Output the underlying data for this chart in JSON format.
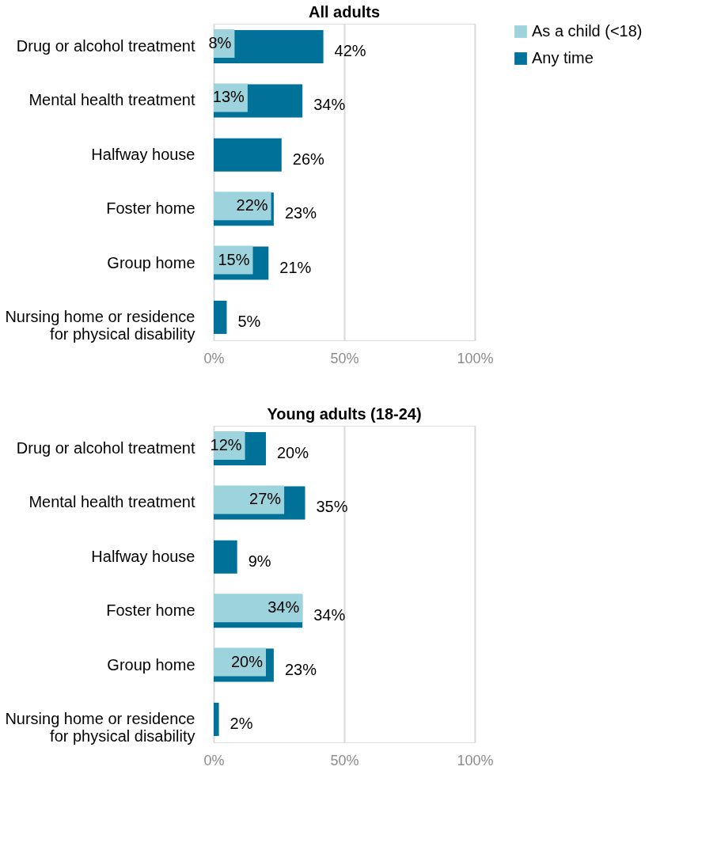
{
  "chart_data": [
    {
      "type": "bar",
      "orientation": "horizontal",
      "title": "All adults",
      "categories": [
        "Drug or alcohol treatment",
        "Mental health treatment",
        "Halfway house",
        "Foster home",
        "Group home",
        "Nursing home or residence for physical disability"
      ],
      "series": [
        {
          "name": "As a child (<18)",
          "color": "#9dd3dc",
          "values": [
            8,
            13,
            null,
            22,
            15,
            null
          ],
          "value_labels": [
            "8%",
            "13%",
            null,
            "22%",
            "15%",
            null
          ]
        },
        {
          "name": "Any time",
          "color": "#00729a",
          "values": [
            42,
            34,
            26,
            23,
            21,
            5
          ],
          "value_labels": [
            "42%",
            "34%",
            "26%",
            "23%",
            "21%",
            "5%"
          ]
        }
      ],
      "xlim": [
        0,
        100
      ],
      "xticks": [
        {
          "value": 0,
          "label": "0%"
        },
        {
          "value": 50,
          "label": "50%"
        },
        {
          "value": 100,
          "label": "100%"
        }
      ],
      "grid": "x",
      "legend": "right"
    },
    {
      "type": "bar",
      "orientation": "horizontal",
      "title": "Young adults (18-24)",
      "categories": [
        "Drug or alcohol treatment",
        "Mental health treatment",
        "Halfway house",
        "Foster home",
        "Group home",
        "Nursing home or residence for physical disability"
      ],
      "series": [
        {
          "name": "As a child (<18)",
          "color": "#9dd3dc",
          "values": [
            12,
            27,
            null,
            34,
            20,
            null
          ],
          "value_labels": [
            "12%",
            "27%",
            null,
            "34%",
            "20%",
            null
          ]
        },
        {
          "name": "Any time",
          "color": "#00729a",
          "values": [
            20,
            35,
            9,
            34,
            23,
            2
          ],
          "value_labels": [
            "20%",
            "35%",
            "9%",
            "34%",
            "23%",
            "2%"
          ]
        }
      ],
      "xlim": [
        0,
        100
      ],
      "xticks": [
        {
          "value": 0,
          "label": "0%"
        },
        {
          "value": 50,
          "label": "50%"
        },
        {
          "value": 100,
          "label": "100%"
        }
      ],
      "grid": "x",
      "legend": "right"
    }
  ]
}
